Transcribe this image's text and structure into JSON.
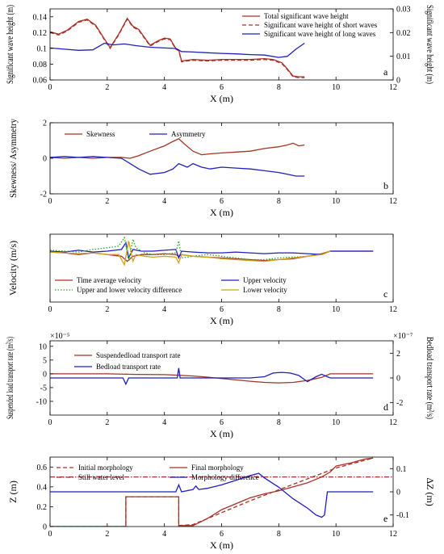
{
  "chart_data": [
    {
      "type": "line",
      "panel": "a",
      "xlabel": "X (m)",
      "ylabel": "Significant wave height (m)",
      "ylabel_right": "Significant wave height (m)",
      "xlim": [
        0,
        12
      ],
      "ylim": [
        0.06,
        0.15
      ],
      "ylim_right": [
        0,
        0.03
      ],
      "xticks": [
        0,
        2,
        4,
        6,
        8,
        10,
        12
      ],
      "yticks": [
        0.06,
        0.08,
        0.1,
        0.12,
        0.14
      ],
      "yticks_right": [
        0,
        0.01,
        0.02,
        0.03
      ],
      "yticklabels": [
        "0.06",
        "0.08",
        "0.1",
        "0.12",
        "0.14"
      ],
      "yticklabels_right": [
        "0",
        "0.01",
        "0.02",
        "0.03"
      ],
      "legend_position": "top-right",
      "colors": {
        "left": "#c0392b",
        "right": "#1f1fbf"
      },
      "series": [
        {
          "name": "Total significant wave height",
          "axis": "left",
          "color": "#a93226",
          "dash": "solid",
          "x": [
            0,
            0.3,
            0.6,
            1.0,
            1.3,
            1.6,
            1.9,
            2.1,
            2.4,
            2.7,
            2.9,
            3.1,
            3.3,
            3.5,
            3.8,
            4.0,
            4.2,
            4.4,
            4.5,
            4.6,
            5.0,
            5.5,
            6.0,
            6.5,
            7.0,
            7.5,
            7.8,
            8.1,
            8.3,
            8.5,
            8.7,
            8.9
          ],
          "y": [
            0.121,
            0.118,
            0.123,
            0.134,
            0.137,
            0.129,
            0.112,
            0.101,
            0.118,
            0.138,
            0.128,
            0.124,
            0.114,
            0.104,
            0.11,
            0.113,
            0.112,
            0.1,
            0.098,
            0.084,
            0.086,
            0.085,
            0.086,
            0.086,
            0.086,
            0.087,
            0.086,
            0.082,
            0.074,
            0.065,
            0.064,
            0.064
          ]
        },
        {
          "name": "Significant wave height of short waves",
          "axis": "left",
          "color": "#a93226",
          "dash": "dashed",
          "x": [
            0,
            0.3,
            0.6,
            1.0,
            1.3,
            1.6,
            1.9,
            2.1,
            2.4,
            2.7,
            2.9,
            3.1,
            3.3,
            3.5,
            3.8,
            4.0,
            4.2,
            4.4,
            4.5,
            4.6,
            5.0,
            5.5,
            6.0,
            6.5,
            7.0,
            7.5,
            7.8,
            8.1,
            8.3,
            8.5,
            8.7,
            8.9
          ],
          "y": [
            0.12,
            0.117,
            0.122,
            0.133,
            0.136,
            0.128,
            0.111,
            0.1,
            0.117,
            0.137,
            0.127,
            0.123,
            0.113,
            0.103,
            0.109,
            0.112,
            0.111,
            0.099,
            0.097,
            0.083,
            0.085,
            0.084,
            0.085,
            0.085,
            0.085,
            0.086,
            0.085,
            0.081,
            0.073,
            0.064,
            0.063,
            0.063
          ]
        },
        {
          "name": "Significant wave height of long waves",
          "axis": "right",
          "color": "#1f1fbf",
          "dash": "solid",
          "x": [
            0,
            0.5,
            1.0,
            1.5,
            1.9,
            2.2,
            2.6,
            3.0,
            3.5,
            4.0,
            4.4,
            4.6,
            5.0,
            5.5,
            6.0,
            6.5,
            7.0,
            7.5,
            8.0,
            8.3,
            8.6,
            8.9
          ],
          "y": [
            0.0135,
            0.013,
            0.0125,
            0.0127,
            0.0155,
            0.0148,
            0.0152,
            0.0145,
            0.0138,
            0.0135,
            0.0133,
            0.012,
            0.0118,
            0.0115,
            0.0112,
            0.011,
            0.0107,
            0.0105,
            0.0095,
            0.01,
            0.013,
            0.0155
          ]
        }
      ]
    },
    {
      "type": "line",
      "panel": "b",
      "xlabel": "X (m)",
      "ylabel": "Skewness/ Asymmetry",
      "xlim": [
        0,
        12
      ],
      "ylim": [
        -2,
        2
      ],
      "xticks": [
        0,
        2,
        4,
        6,
        8,
        10,
        12
      ],
      "yticks": [
        -2,
        0,
        2
      ],
      "legend_position": "top-left",
      "series": [
        {
          "name": "Skewness",
          "color": "#a0361f",
          "x": [
            0,
            0.5,
            1.0,
            1.5,
            2.0,
            2.5,
            2.8,
            3.1,
            3.5,
            4.0,
            4.3,
            4.5,
            4.7,
            5.0,
            5.3,
            5.6,
            6.0,
            6.5,
            7.0,
            7.5,
            8.0,
            8.3,
            8.5,
            8.7,
            8.9
          ],
          "y": [
            0.05,
            0.0,
            0.05,
            0.0,
            0.05,
            0.05,
            0.0,
            0.15,
            0.4,
            0.7,
            0.95,
            1.1,
            0.8,
            0.4,
            0.2,
            0.25,
            0.3,
            0.35,
            0.4,
            0.55,
            0.65,
            0.75,
            0.85,
            0.7,
            0.75
          ]
        },
        {
          "name": "Asymmetry",
          "color": "#1f1fbf",
          "x": [
            0,
            0.5,
            1.0,
            1.5,
            2.0,
            2.5,
            2.8,
            3.1,
            3.5,
            4.0,
            4.3,
            4.5,
            4.8,
            5.0,
            5.3,
            5.6,
            6.0,
            6.5,
            7.0,
            7.5,
            8.0,
            8.3,
            8.6,
            8.9
          ],
          "y": [
            0.05,
            0.1,
            0.05,
            0.1,
            0.05,
            0.0,
            -0.3,
            -0.6,
            -0.9,
            -0.8,
            -0.6,
            -0.3,
            -0.5,
            -0.3,
            -0.5,
            -0.6,
            -0.5,
            -0.55,
            -0.6,
            -0.7,
            -0.8,
            -0.9,
            -1.0,
            -1.0
          ]
        }
      ]
    },
    {
      "type": "line",
      "panel": "c",
      "xlabel": "X (m)",
      "ylabel": "Velocity (m/s)",
      "xlim": [
        0,
        12
      ],
      "ylim": [
        -0.3,
        0.1
      ],
      "xticks": [
        0,
        2,
        4,
        6,
        8,
        10,
        12
      ],
      "legend_position": "bottom",
      "series": [
        {
          "name": "Time average velocity",
          "color": "#a93226",
          "dash": "solid",
          "x": [
            0,
            0.5,
            1.0,
            1.5,
            2.0,
            2.5,
            2.7,
            2.9,
            3.2,
            3.6,
            4.0,
            4.4,
            4.5,
            4.6,
            5.0,
            5.5,
            6.0,
            6.5,
            7.0,
            7.5,
            8.0,
            8.5,
            9.0,
            9.5,
            9.8,
            10.5,
            11.3
          ],
          "y": [
            -0.005,
            -0.01,
            -0.02,
            -0.01,
            -0.02,
            -0.03,
            -0.06,
            -0.03,
            -0.02,
            -0.02,
            -0.015,
            -0.02,
            -0.03,
            -0.02,
            -0.03,
            -0.035,
            -0.04,
            -0.045,
            -0.05,
            -0.055,
            -0.05,
            -0.045,
            -0.03,
            -0.015,
            0,
            0,
            0
          ]
        },
        {
          "name": "Upper velocity",
          "color": "#1f1fbf",
          "dash": "solid",
          "x": [
            0,
            0.5,
            1.0,
            1.5,
            2.0,
            2.5,
            2.65,
            2.75,
            2.9,
            3.2,
            3.6,
            4.0,
            4.4,
            4.5,
            4.6,
            5.0,
            5.5,
            6.0,
            6.5,
            7.0,
            7.5,
            8.0,
            8.5,
            9.0,
            9.5,
            9.8,
            10.5,
            11.3
          ],
          "y": [
            0,
            -0.005,
            0.005,
            -0.005,
            0.0,
            0.01,
            0.05,
            -0.04,
            0.01,
            0.0,
            0.0,
            0.005,
            0.01,
            -0.04,
            0.0,
            -0.005,
            -0.01,
            -0.01,
            -0.005,
            -0.01,
            -0.015,
            -0.01,
            -0.01,
            -0.015,
            -0.02,
            0,
            0,
            0
          ]
        },
        {
          "name": "Upper and lower velocity difference",
          "color": "#22aa22",
          "dash": "dotted",
          "x": [
            0,
            0.5,
            1.0,
            1.5,
            2.0,
            2.4,
            2.6,
            2.75,
            2.9,
            3.0,
            3.3,
            3.6,
            4.0,
            4.4,
            4.5,
            4.6,
            5.0,
            5.5,
            6.0,
            6.5,
            7.0,
            7.5,
            8.0,
            8.5,
            9.0,
            9.5,
            9.8
          ],
          "y": [
            0.005,
            0.0,
            -0.005,
            0.01,
            0.02,
            0.03,
            0.08,
            -0.06,
            0.07,
            0.02,
            -0.01,
            -0.02,
            -0.02,
            -0.01,
            0.06,
            -0.04,
            -0.03,
            -0.02,
            -0.03,
            -0.04,
            -0.05,
            -0.05,
            -0.04,
            -0.035,
            -0.03,
            -0.02,
            0
          ]
        },
        {
          "name": "Lower velocity",
          "color": "#d4a017",
          "dash": "solid",
          "x": [
            0,
            0.5,
            1.0,
            1.5,
            2.0,
            2.4,
            2.6,
            2.75,
            2.9,
            3.0,
            3.3,
            3.6,
            4.0,
            4.4,
            4.5,
            4.6,
            5.0,
            5.5,
            6.0,
            6.5,
            7.0,
            7.5,
            8.0,
            8.5,
            9.0,
            9.5,
            9.8
          ],
          "y": [
            -0.005,
            -0.01,
            -0.015,
            -0.01,
            -0.02,
            -0.02,
            -0.08,
            0.06,
            -0.06,
            -0.02,
            -0.03,
            -0.035,
            -0.03,
            -0.035,
            -0.07,
            -0.02,
            -0.03,
            -0.035,
            -0.045,
            -0.05,
            -0.055,
            -0.06,
            -0.05,
            -0.04,
            -0.03,
            -0.02,
            0
          ]
        }
      ]
    },
    {
      "type": "line",
      "panel": "d",
      "xlabel": "X (m)",
      "ylabel": "Suspended load transport rate (m²/s)",
      "ylabel_right": "Bedload transport rate (m²/s)",
      "xlim": [
        0,
        12
      ],
      "ylim": [
        -15,
        12
      ],
      "ylim_right": [
        -3,
        3
      ],
      "scale_note": "×10⁻⁵",
      "scale_note_right": "×10⁻⁷",
      "xticks": [
        0,
        2,
        4,
        6,
        8,
        10,
        12
      ],
      "yticks": [
        -10,
        -5,
        0,
        5,
        10
      ],
      "yticks_right": [
        -2,
        0,
        2
      ],
      "yticklabels": [
        "-10",
        "-5",
        "0",
        "5",
        "10"
      ],
      "yticklabels_right": [
        "-2",
        "0",
        "2"
      ],
      "legend_position": "top-left",
      "series": [
        {
          "name": "Suspendedload transport rate",
          "axis": "left",
          "color": "#a0361f",
          "x": [
            0,
            1,
            2,
            3,
            4,
            4.5,
            5.0,
            5.5,
            6.0,
            6.5,
            7.0,
            7.5,
            8.0,
            8.5,
            9.0,
            9.5,
            9.8,
            10.5,
            11.3
          ],
          "y": [
            0,
            0,
            0,
            -0.2,
            -0.3,
            -0.5,
            -0.8,
            -1.2,
            -1.7,
            -2.2,
            -2.7,
            -3.1,
            -3.3,
            -3.1,
            -2.4,
            -1.3,
            0,
            0,
            0
          ]
        },
        {
          "name": "Bedload transport rate",
          "axis": "right",
          "color": "#1f1fbf",
          "x": [
            0,
            1,
            2,
            2.55,
            2.65,
            2.75,
            3.0,
            4.0,
            4.45,
            4.5,
            4.55,
            5.0,
            6.0,
            7.0,
            7.5,
            7.8,
            8.1,
            8.4,
            8.7,
            9.0,
            9.3,
            9.5,
            9.7,
            9.8,
            10.5,
            11.3
          ],
          "y": [
            0,
            0,
            0,
            0,
            -0.5,
            0,
            0,
            0,
            0,
            0.8,
            0,
            0,
            0,
            0,
            0.1,
            0.4,
            0.45,
            0.4,
            0.2,
            -0.3,
            0.1,
            0.3,
            0.1,
            0,
            0,
            0
          ]
        }
      ]
    },
    {
      "type": "line",
      "panel": "e",
      "xlabel": "X (m)",
      "ylabel": "Z (m)",
      "ylabel_right": "ΔZ (m)",
      "xlim": [
        0,
        12
      ],
      "ylim": [
        0,
        0.7
      ],
      "ylim_right": [
        -0.15,
        0.15
      ],
      "xticks": [
        0,
        2,
        4,
        6,
        8,
        10,
        12
      ],
      "yticks": [
        0,
        0.2,
        0.4,
        0.6
      ],
      "yticks_right": [
        -0.1,
        0,
        0.1
      ],
      "yticklabels": [
        "0",
        "0.2",
        "0.4",
        "0.6"
      ],
      "yticklabels_right": [
        "-0.1",
        "0",
        "0.1"
      ],
      "legend_position": "top-left",
      "series": [
        {
          "name": "Initial morphology",
          "axis": "left",
          "color": "#a93226",
          "dash": "dashed",
          "x": [
            0,
            2.65,
            2.65,
            4.5,
            4.5,
            5.0,
            6.0,
            7.0,
            8.0,
            9.0,
            10.0,
            11.3
          ],
          "y": [
            0,
            0,
            0.3,
            0.3,
            0.01,
            0.02,
            0.14,
            0.26,
            0.37,
            0.48,
            0.59,
            0.69
          ]
        },
        {
          "name": "Final morphology",
          "axis": "left",
          "color": "#a93226",
          "dash": "solid",
          "x": [
            0,
            2.65,
            2.65,
            4.5,
            4.5,
            5.0,
            5.5,
            6.0,
            7.0,
            7.5,
            8.0,
            8.5,
            9.0,
            9.5,
            9.8,
            10.0,
            10.5,
            11.0,
            11.3
          ],
          "y": [
            0,
            0,
            0.3,
            0.3,
            0.01,
            0.01,
            0.08,
            0.17,
            0.29,
            0.33,
            0.36,
            0.4,
            0.44,
            0.5,
            0.55,
            0.61,
            0.64,
            0.68,
            0.69
          ]
        },
        {
          "name": "Still water level",
          "axis": "left",
          "color": "#a93226",
          "dash": "dashdot",
          "x": [
            0,
            12
          ],
          "y": [
            0.5,
            0.5
          ]
        },
        {
          "name": "Morphology difference",
          "axis": "right",
          "color": "#1f1fbf",
          "dash": "solid",
          "x": [
            0,
            2.5,
            4.4,
            4.5,
            4.6,
            5.0,
            5.1,
            5.2,
            5.5,
            6.0,
            6.5,
            7.0,
            7.3,
            7.5,
            8.0,
            8.5,
            9.0,
            9.3,
            9.5,
            9.6,
            9.7,
            9.8,
            10.5,
            11.3
          ],
          "y": [
            0,
            0,
            0,
            0.03,
            0,
            0.01,
            0.025,
            0.01,
            0.015,
            0.03,
            0.05,
            0.07,
            0.08,
            0.06,
            0.02,
            -0.03,
            -0.07,
            -0.1,
            -0.11,
            -0.1,
            0,
            0,
            0,
            0
          ]
        }
      ]
    }
  ]
}
